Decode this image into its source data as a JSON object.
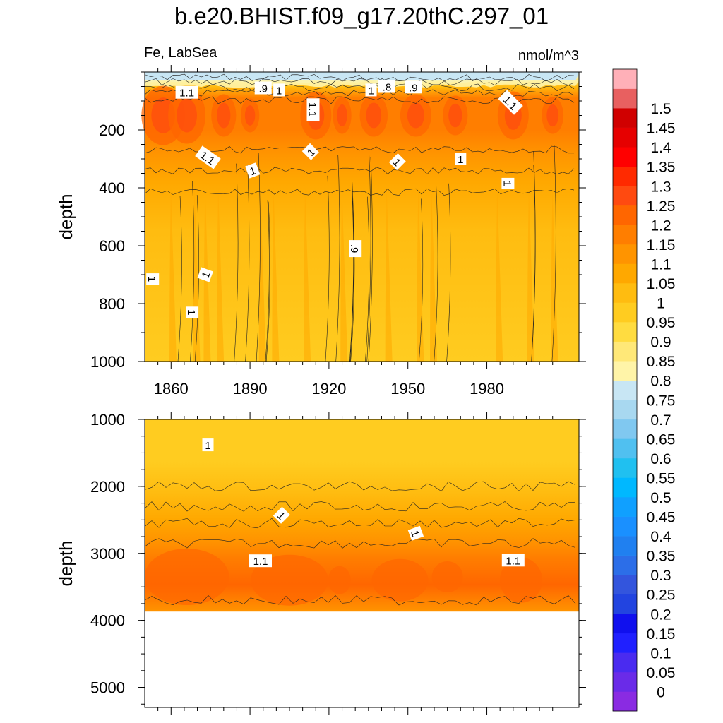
{
  "figure": {
    "title": "b.e20.BHIST.f09_g17.20thC.297_01",
    "left_subtitle": "Fe, LabSea",
    "units": "nmol/m^3"
  },
  "chart_data": [
    {
      "type": "heatmap",
      "panel": "upper",
      "title": "b.e20.BHIST.f09_g17.20thC.297_01",
      "variable": "Fe",
      "region": "LabSea",
      "units": "nmol/m^3",
      "xlabel": "",
      "ylabel": "depth",
      "xlim": [
        1850,
        2015
      ],
      "ylim": [
        1000,
        0
      ],
      "x_ticks": [
        1860,
        1890,
        1920,
        1950,
        1980
      ],
      "x_tick_labels": [
        "1860",
        "1890",
        "1920",
        "1950",
        "1980"
      ],
      "y_ticks": [
        200,
        400,
        600,
        800,
        1000
      ],
      "y_tick_labels": [
        "200",
        "400",
        "600",
        "800",
        "1000"
      ],
      "contour_labels": [
        {
          "text": "1.1",
          "year": 1866,
          "depth": 70,
          "angle": 0
        },
        {
          "text": ".9",
          "year": 1895,
          "depth": 55,
          "angle": 0
        },
        {
          "text": "1",
          "year": 1901,
          "depth": 62,
          "angle": 0
        },
        {
          "text": "1.1",
          "year": 1914,
          "depth": 130,
          "angle": 90
        },
        {
          "text": "1",
          "year": 1936,
          "depth": 62,
          "angle": 0
        },
        {
          "text": ".8",
          "year": 1942,
          "depth": 50,
          "angle": 0
        },
        {
          "text": ".9",
          "year": 1952,
          "depth": 52,
          "angle": 0
        },
        {
          "text": "1.1",
          "year": 1989,
          "depth": 105,
          "angle": 45
        },
        {
          "text": "1.1",
          "year": 1874,
          "depth": 295,
          "angle": 35
        },
        {
          "text": "1",
          "year": 1891,
          "depth": 340,
          "angle": -20
        },
        {
          "text": "1",
          "year": 1913,
          "depth": 275,
          "angle": -45
        },
        {
          "text": "1",
          "year": 1946,
          "depth": 310,
          "angle": 45
        },
        {
          "text": "1",
          "year": 1970,
          "depth": 300,
          "angle": 0
        },
        {
          "text": "1",
          "year": 1988,
          "depth": 385,
          "angle": 90
        },
        {
          "text": ".9",
          "year": 1930,
          "depth": 610,
          "angle": 90
        },
        {
          "text": "1",
          "year": 1853,
          "depth": 715,
          "angle": 90
        },
        {
          "text": "1",
          "year": 1873,
          "depth": 700,
          "angle": -70
        },
        {
          "text": "1",
          "year": 1868,
          "depth": 830,
          "angle": 90
        }
      ]
    },
    {
      "type": "heatmap",
      "panel": "lower",
      "xlabel": "",
      "ylabel": "depth",
      "xlim": [
        1850,
        2015
      ],
      "ylim": [
        5300,
        1000
      ],
      "y_ticks": [
        1000,
        2000,
        3000,
        4000,
        5000
      ],
      "y_tick_labels": [
        "1000",
        "2000",
        "3000",
        "4000",
        "5000"
      ],
      "seafloor_depth": 3870,
      "contour_labels": [
        {
          "text": "1",
          "year": 1874,
          "depth": 1380,
          "angle": 0
        },
        {
          "text": "1",
          "year": 1902,
          "depth": 2430,
          "angle": 45
        },
        {
          "text": "1",
          "year": 1953,
          "depth": 2700,
          "angle": 70
        },
        {
          "text": "1.1",
          "year": 1894,
          "depth": 3110,
          "angle": 0
        },
        {
          "text": "1.1",
          "year": 1990,
          "depth": 3100,
          "angle": 0
        }
      ]
    }
  ],
  "colorbar": {
    "levels": [
      "0",
      "0.05",
      "0.1",
      "0.15",
      "0.2",
      "0.25",
      "0.3",
      "0.35",
      "0.4",
      "0.45",
      "0.5",
      "0.55",
      "0.6",
      "0.65",
      "0.7",
      "0.75",
      "0.8",
      "0.85",
      "0.9",
      "0.95",
      "1",
      "1.05",
      "1.1",
      "1.15",
      "1.2",
      "1.25",
      "1.3",
      "1.35",
      "1.4",
      "1.45",
      "1.5"
    ],
    "colors": [
      "#8a2be2",
      "#6a2be8",
      "#4a2bf0",
      "#2020ff",
      "#1010ee",
      "#2244e0",
      "#3355dd",
      "#2c6ee8",
      "#2080f0",
      "#1a90ff",
      "#10a0ff",
      "#00b8ff",
      "#20c0f0",
      "#50c0f0",
      "#80c8f0",
      "#a8d8f0",
      "#c8e6f4",
      "#fff4a8",
      "#ffe878",
      "#ffdc40",
      "#ffcc20",
      "#ffbc10",
      "#ffa800",
      "#ff9400",
      "#ff7e00",
      "#ff6600",
      "#ff4a10",
      "#ff2a00",
      "#ff0000",
      "#e60000",
      "#d00000",
      "#e86060",
      "#ffb0b8"
    ]
  }
}
